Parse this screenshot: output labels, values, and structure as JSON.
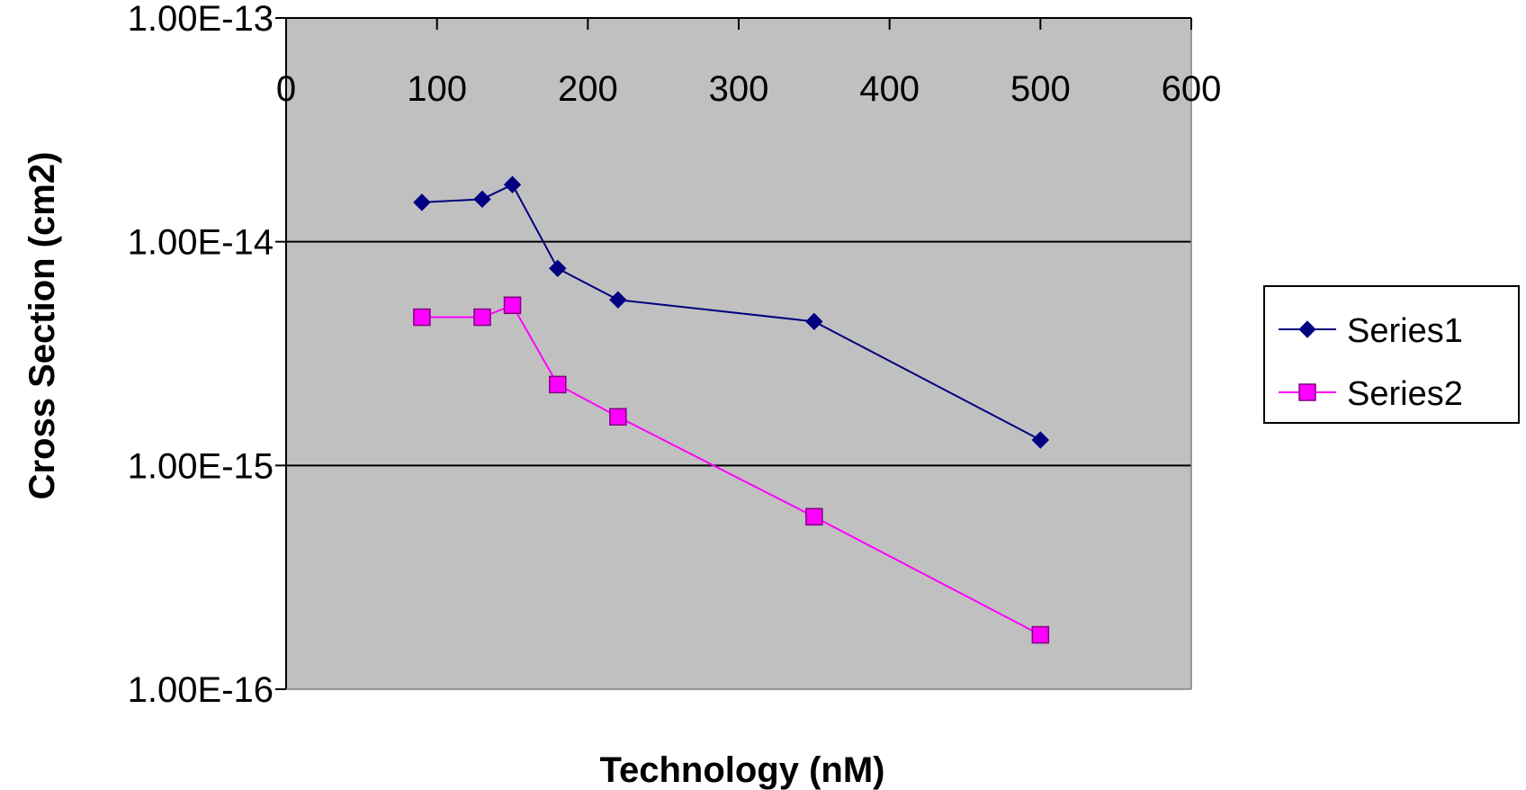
{
  "chart_data": {
    "type": "line",
    "title": "",
    "xlabel": "Technology (nM)",
    "ylabel": "Cross Section (cm2)",
    "xlim": [
      0,
      600
    ],
    "ylim": [
      1e-16,
      1e-13
    ],
    "y_scale": "log",
    "x_ticks": [
      "0",
      "100",
      "200",
      "300",
      "400",
      "500",
      "600"
    ],
    "x_tick_values": [
      0,
      100,
      200,
      300,
      400,
      500,
      600
    ],
    "x_axis_position": "top",
    "y_ticks": [
      "1.00E-13",
      "1.00E-14",
      "1.00E-15",
      "1.00E-16"
    ],
    "y_tick_values": [
      1e-13,
      1e-14,
      1e-15,
      1e-16
    ],
    "grid": "horizontal major",
    "legend_position": "right",
    "series": [
      {
        "name": "Series1",
        "color": "#000080",
        "marker": "diamond",
        "x": [
          90,
          130,
          150,
          180,
          220,
          350,
          500
        ],
        "y": [
          1.5e-14,
          1.55e-14,
          1.8e-14,
          7.6e-15,
          5.5e-15,
          4.4e-15,
          1.3e-15
        ]
      },
      {
        "name": "Series2",
        "color": "#FF00FF",
        "marker": "square",
        "x": [
          90,
          130,
          150,
          180,
          220,
          350,
          500
        ],
        "y": [
          4.6e-15,
          4.6e-15,
          5.2e-15,
          2.3e-15,
          1.65e-15,
          5.9e-16,
          1.75e-16
        ]
      }
    ]
  },
  "colors": {
    "plot_area": "#C0C0C0",
    "gridline": "#000000"
  }
}
